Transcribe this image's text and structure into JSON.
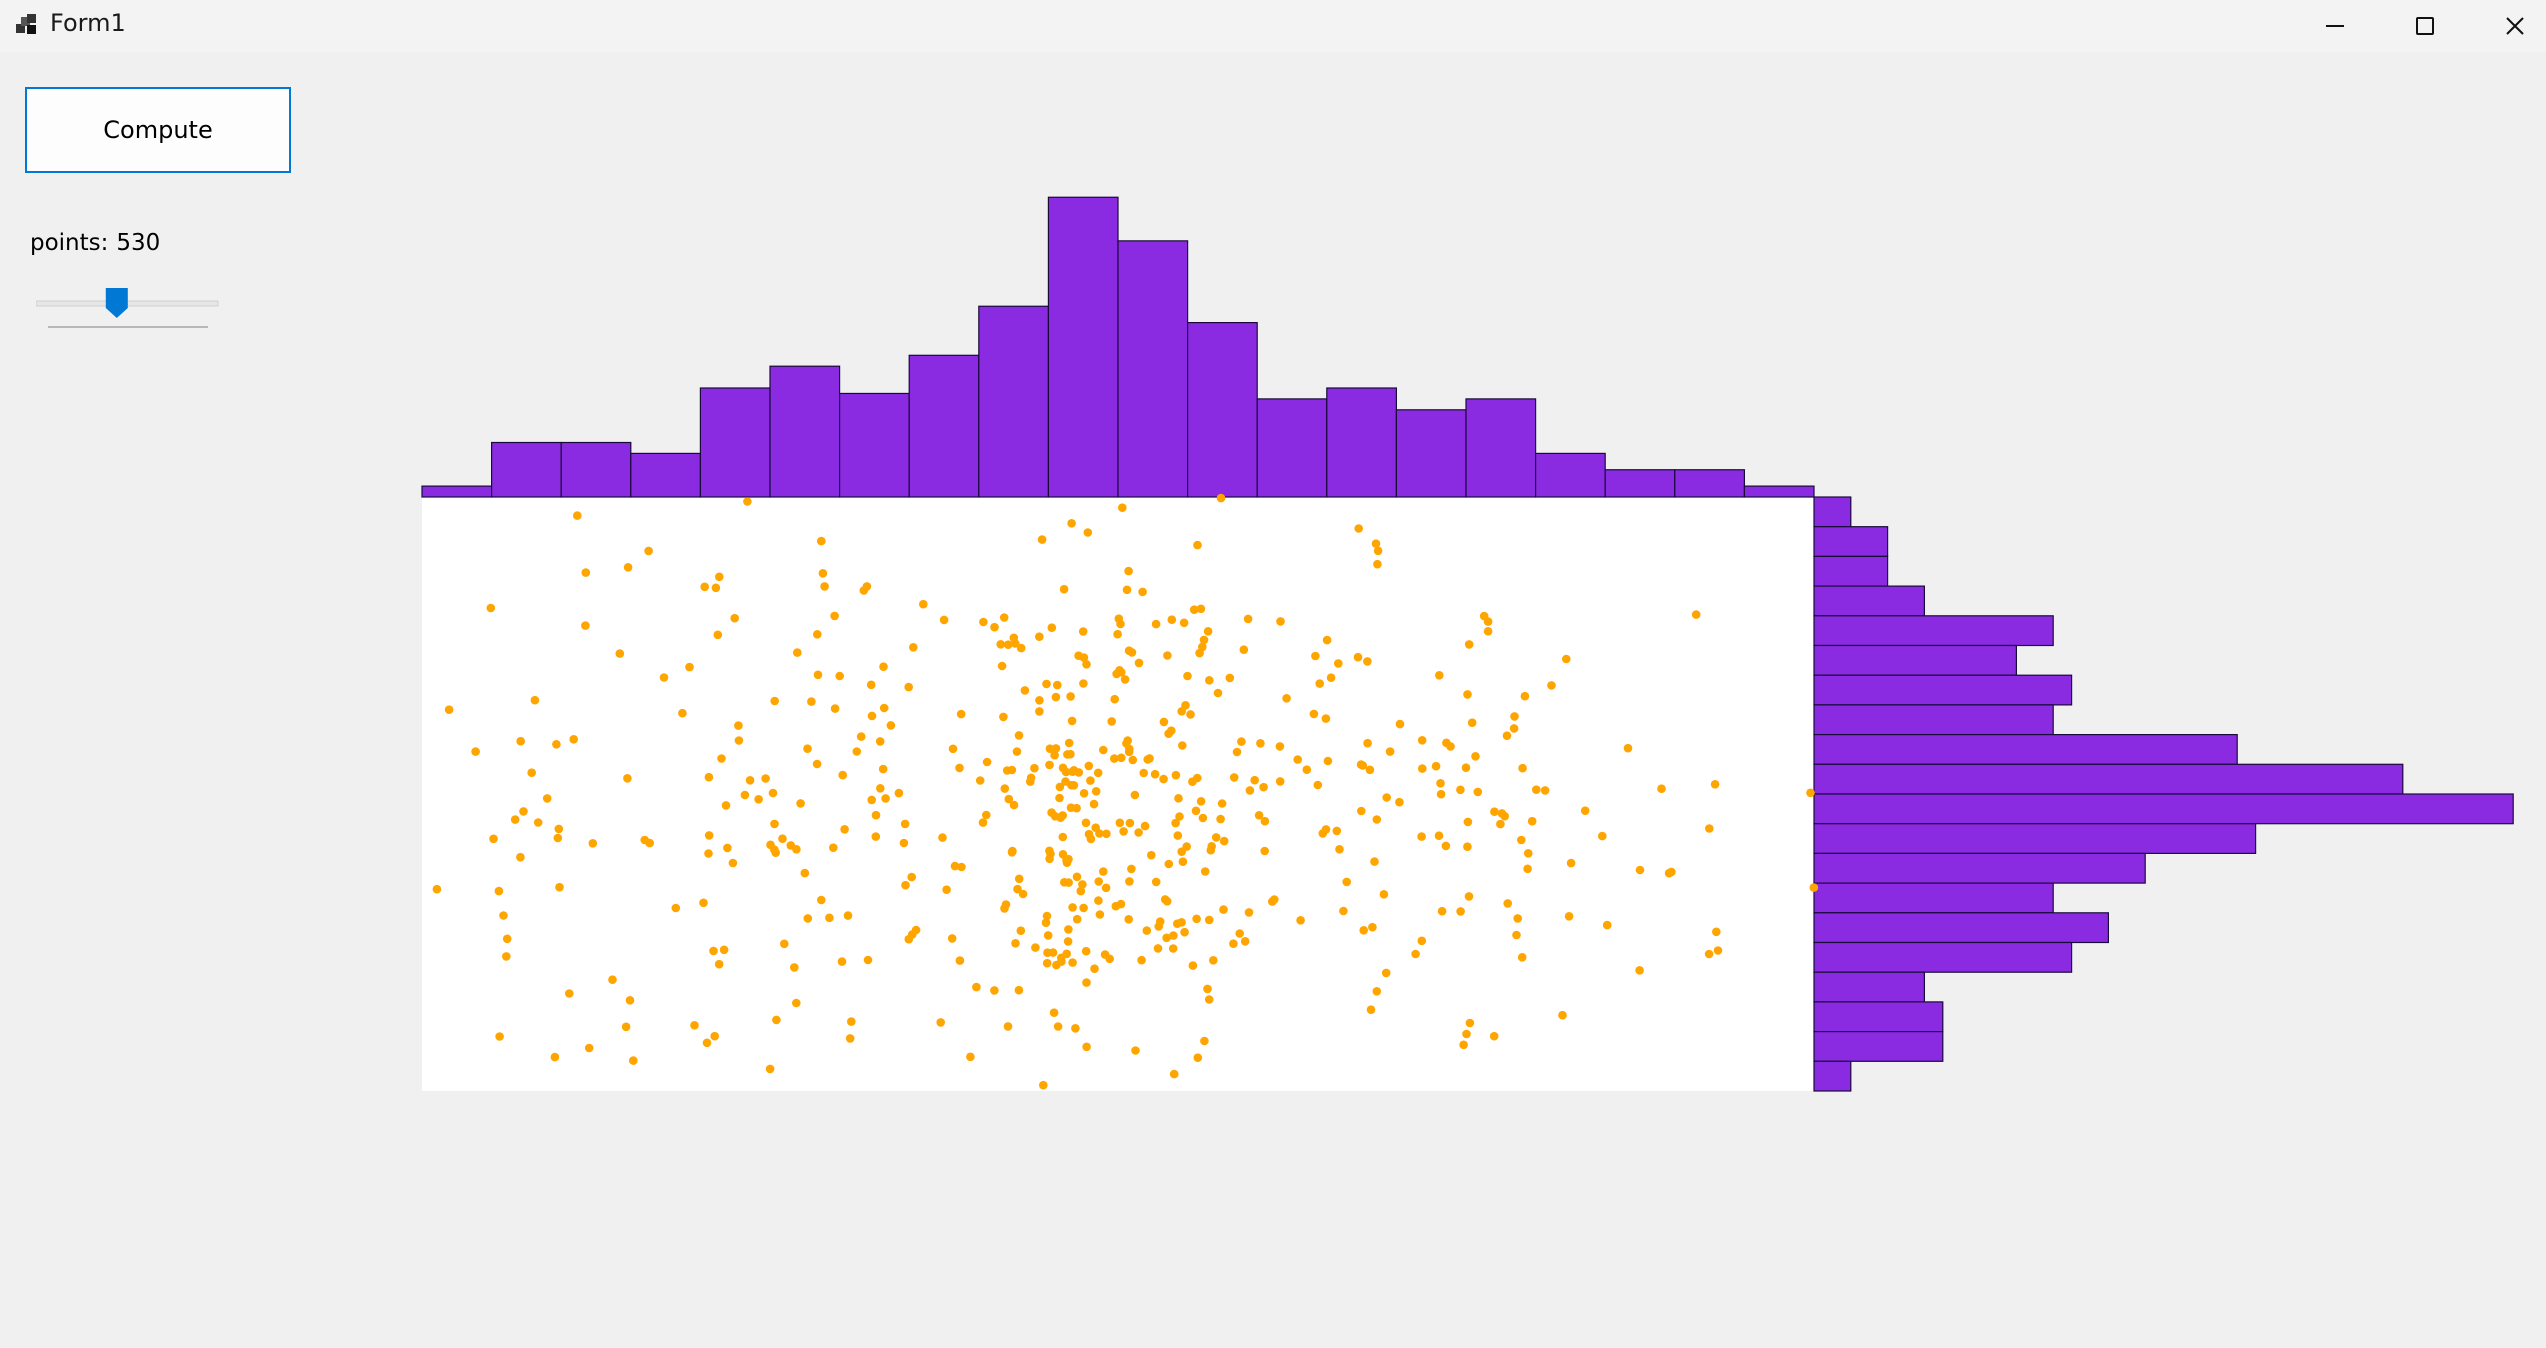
{
  "window": {
    "title": "Form1",
    "icons": {
      "app": "app-icon",
      "minimize": "minimize-icon",
      "maximize": "maximize-icon",
      "close": "close-icon"
    }
  },
  "controls": {
    "compute_label": "Compute",
    "points_label": "points:",
    "points_value": "530",
    "slider_fraction": 0.43
  },
  "colors": {
    "bar_fill": "#8a2be2",
    "bar_stroke": "#1a0a3a",
    "point": "#ffa500",
    "plot_bg": "#ffffff",
    "accent": "#0078d4"
  },
  "chart_data": {
    "type": "scatter",
    "title": "",
    "xlabel": "",
    "ylabel": "",
    "grid": false,
    "seed": 530,
    "point_count": 530,
    "top_histogram": [
      2,
      10,
      10,
      8,
      20,
      24,
      19,
      26,
      35,
      55,
      47,
      32,
      18,
      20,
      16,
      18,
      8,
      5,
      5,
      2
    ],
    "right_histogram": [
      2,
      4,
      4,
      6,
      13,
      11,
      14,
      13,
      23,
      32,
      38,
      24,
      18,
      13,
      16,
      14,
      6,
      7,
      7,
      2
    ]
  }
}
